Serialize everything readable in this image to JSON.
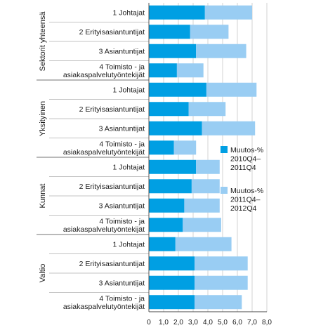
{
  "chart_data": {
    "type": "bar",
    "orientation": "horizontal",
    "stacked": true,
    "x_ticks": [
      "0",
      "1,0",
      "2,0",
      "3,0",
      "4,0",
      "5,0",
      "6,0",
      "7,0",
      "8,0"
    ],
    "xlim": [
      0,
      8
    ],
    "grid": "vertical",
    "legend_position": "right",
    "groups": [
      {
        "name": "Sektorit yhteensä",
        "categories": [
          [
            "1 Johtajat"
          ],
          [
            "2 Erityisasiantuntijat"
          ],
          [
            "3 Asiantuntijat"
          ],
          [
            "4 Toimisto - ja",
            "asiakaspalvelutyöntekijät"
          ]
        ],
        "series1": [
          3.8,
          2.8,
          3.2,
          1.9
        ],
        "series2": [
          3.2,
          2.6,
          3.4,
          1.8
        ]
      },
      {
        "name": "Yksityinen",
        "categories": [
          [
            "1 Johtajat"
          ],
          [
            "2 Erityisasiantuntijat"
          ],
          [
            "3 Asiantuntijat"
          ],
          [
            "4 Toimisto - ja",
            "asiakaspalvelutyöntekijät"
          ]
        ],
        "series1": [
          3.9,
          2.7,
          3.6,
          1.7
        ],
        "series2": [
          3.4,
          2.5,
          3.6,
          1.5
        ]
      },
      {
        "name": "Kunnat",
        "categories": [
          [
            "1 Johtajat"
          ],
          [
            "2 Erityisasiantuntijat"
          ],
          [
            "3 Asiantuntijat"
          ],
          [
            "4 Toimisto - ja",
            "asiakaspalvelutyöntekijät"
          ]
        ],
        "series1": [
          3.2,
          2.9,
          2.4,
          2.3
        ],
        "series2": [
          1.6,
          1.9,
          2.4,
          2.6
        ]
      },
      {
        "name": "Valtio",
        "categories": [
          [
            "1 Johtajat"
          ],
          [
            "2 Erityisasiantuntijat"
          ],
          [
            "3 Asiantuntijat"
          ],
          [
            "4 Toimisto - ja",
            "asiakaspalvelutyöntekijät"
          ]
        ],
        "series1": [
          1.8,
          3.1,
          3.1,
          3.1
        ],
        "series2": [
          3.8,
          3.6,
          3.6,
          3.2
        ]
      }
    ],
    "series": [
      {
        "name": [
          "Muutos-%",
          "2010Q4–",
          "2011Q4"
        ],
        "color": "#009fe3"
      },
      {
        "name": [
          "Muutos-%",
          "2011Q4–",
          "2012Q4"
        ],
        "color": "#99cdf3"
      }
    ]
  }
}
